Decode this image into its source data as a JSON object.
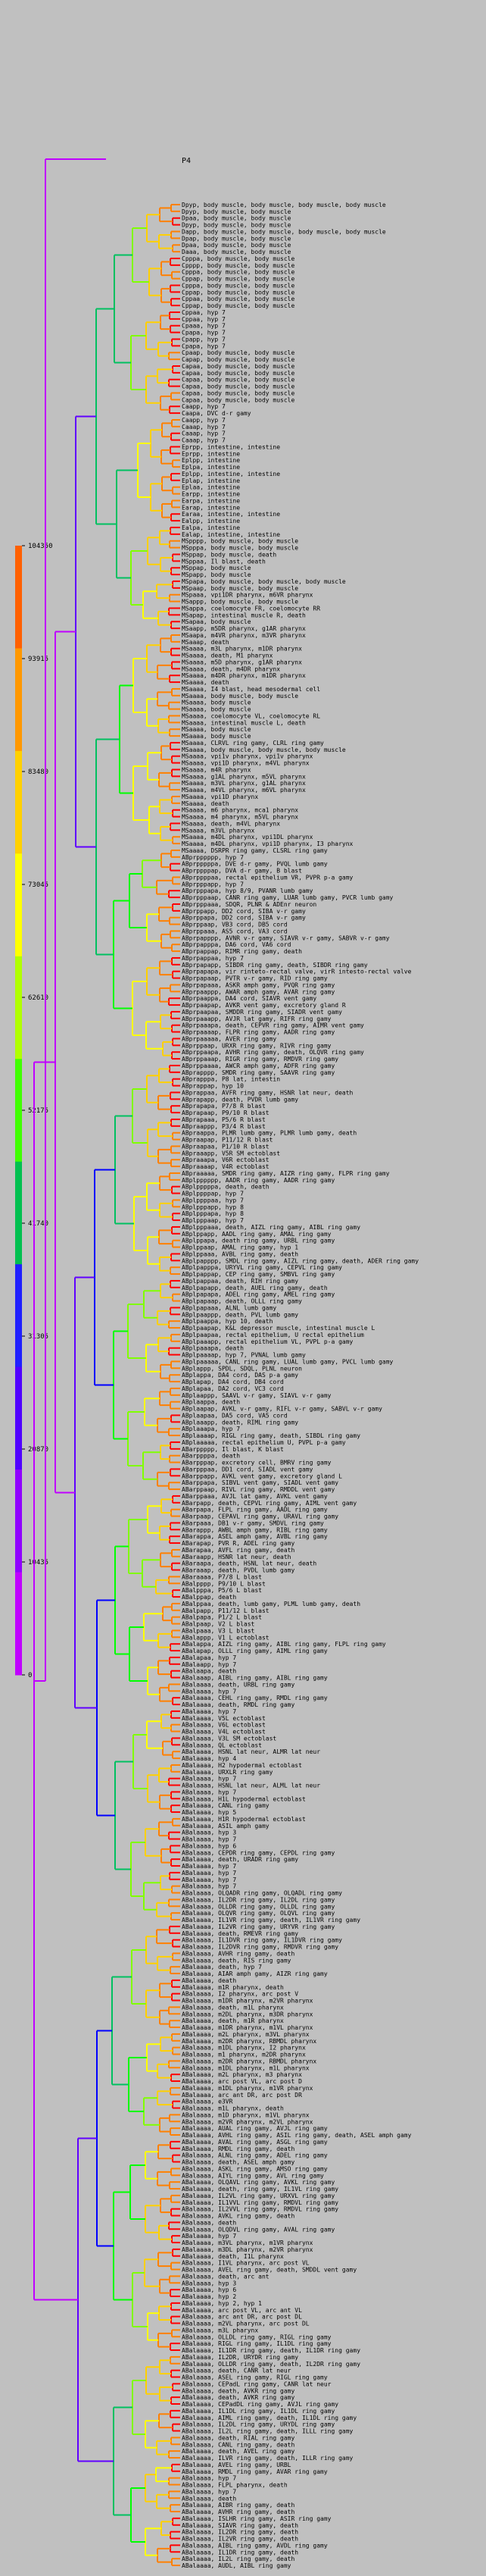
{
  "root_label": "P4",
  "color_scale": {
    "ticks": [
      "104350",
      "93915",
      "83480",
      "73045",
      "62610",
      "52175",
      "41740",
      "31305",
      "20870",
      "10435",
      "0"
    ],
    "colors": [
      "#ff6000",
      "#ff9800",
      "#ffd000",
      "#ffff00",
      "#b0ff00",
      "#40ff00",
      "#00c050",
      "#2020ff",
      "#5000ff",
      "#9000ff",
      "#c000ff"
    ]
  },
  "branch_colors": [
    "#ff0000",
    "#ff8000",
    "#ffd000",
    "#ffff00",
    "#80ff00",
    "#00ff00",
    "#00c060",
    "#0000ff",
    "#6000ff",
    "#a000ff",
    "#c000ff"
  ],
  "leaves": [
    "Dpyp, body muscle, body muscle, body muscle, body muscle",
    "Dpyp, body muscle, body muscle",
    "Dpaa, body muscle, body muscle",
    "Dpyp, body muscle, body muscle",
    "Dapp, body muscle, body muscle, body muscle, body muscle",
    "Dpap, body muscle, body muscle",
    "Dpaa, body muscle, body muscle",
    "Daaa, body muscle, body muscle",
    "Cpppa, body muscle, body muscle",
    "Cpppp, body muscle, body muscle",
    "Cpppa, body muscle, body muscle",
    "Cppap, body muscle, body muscle",
    "Cpppa, body muscle, body muscle",
    "Cppap, body muscle, body muscle",
    "Cppaa, body muscle, body muscle",
    "Cppap, body muscle, body muscle",
    "Cppaa, hyp 7",
    "Cppaa, hyp 7",
    "Cpaaa, hyp 7",
    "Cpapa, hyp 7",
    "Cpapp, hyp 7",
    "Cpapa, hyp 7",
    "Cpaap, body muscle, body muscle",
    "Capap, body muscle, body muscle",
    "Capaa, body muscle, body muscle",
    "Capaa, body muscle, body muscle",
    "Capaa, body muscle, body muscle",
    "Capaa, body muscle, body muscle",
    "Capaa, body muscle, body muscle",
    "Capaa, body muscle, body muscle",
    "Caapp, hyp 7",
    "Caapa, DVC d-r gamy",
    "Caapp, hyp 7",
    "Caaap, hyp 7",
    "Caaap, hyp 7",
    "Caaap, hyp 7",
    "Eprpp, intestine, intestine",
    "Eprpp, intestine",
    "Eplpp, intestine",
    "Eplpa, intestine",
    "Eplpp, intestine, intestine",
    "Eplap, intestine",
    "Eplaa, intestine",
    "Earpp, intestine",
    "Earpa, intestine",
    "Earap, intestine",
    "Earaa, intestine, intestine",
    "Ealpp, intestine",
    "Ealpa, intestine",
    "Ealap, intestine, intestine",
    "MSpppp, body muscle, body muscle",
    "MSpppa, body muscle, body muscle",
    "MSppap, body muscle, death",
    "MSppaa, Il blast, death",
    "MSppap, body muscle",
    "MSpapp, body muscle",
    "MSpapa, body muscle, body muscle, body muscle",
    "MSpaap, body muscle, body muscle",
    "MSpaaa, vpi1DR pharynx, m6VR pharynx",
    "MSappp, body muscle, body muscle",
    "MSappa, coelomocyte FR, coelomocyte RR",
    "MSapap, intestinal muscle R, death",
    "MSapaa, body muscle",
    "MSaapp, m5DR pharynx, g1AR pharynx",
    "MSaapa, m4VR pharynx, m3VR pharynx",
    "MSaaap, death",
    "MSaaaa, m3L pharynx, m1DR pharynx",
    "MSaaaa, death, M1 pharynx",
    "MSaaaa, m5D pharynx, g1AR pharynx",
    "MSaaaa, death, m4DR pharynx",
    "MSaaaa, m4DR pharynx, m1DR pharynx",
    "MSaaaa, death",
    "MSaaaa, I4 blast, head mesodermal cell",
    "MSaaaa, body muscle, body muscle",
    "MSaaaa, body muscle",
    "MSaaaa, body muscle",
    "MSaaaa, coelomocyte VL, coelomocyte RL",
    "MSaaaa, intestinal muscle L, death",
    "MSaaaa, body muscle",
    "MSaaaa, body muscle",
    "MSaaaa, CLRVL ring gamy, CLRL ring gamy",
    "MSaaaa, body muscle, body muscle, body muscle",
    "MSaaaa, vpi1v pharynx, vpi1v pharynx",
    "MSaaaa, vpi1D pharynx, m4VL pharynx",
    "MSaaaa, m4R pharynx",
    "MSaaaa, g1AL pharynx, m5VL pharynx",
    "MSaaaa, m3VL pharynx, g1AL pharynx",
    "MSaaaa, m4VL pharynx, m6VL pharynx",
    "MSaaaa, vpi1D pharynx",
    "MSaaaa, death",
    "MSaaaa, m6 pharynx, mca1 pharynx",
    "MSaaaa, m4 pharynx, m5VL pharynx",
    "MSaaaa, death, m4VL pharynx",
    "MSaaaa, m3VL pharynx",
    "MSaaaa, m4DL pharynx, vpi1DL pharynx",
    "MSaaaa, m4DL pharynx, vpi1D pharynx, I3 pharynx",
    "MSaaaa, DSRPR ring gamy, CLSRL ring gamy",
    "ABprpppppp, hyp 7",
    "ABprpppppa, DVE d-r gamy, PVQL lumb gamy",
    "ABprppppap, DVA d-r gamy, B blast",
    "ABprppppaa, rectal epithelium VR, PVPR p-a gamy",
    "ABprpppapp, hyp 7",
    "ABprpppapa, hyp 8/9, PVANR lumb gamy",
    "ABprpppaap, CANR ring gamy, LUAR lumb gamy, PVCR lumb gamy",
    "ABprpppaaa, SDQR, PLNR & ADEnr neuron",
    "ABprppapp, DD2 cord, SIBA v-r gamy",
    "ABprppapa, DD2 cord, SIBA v-r gamy",
    "ABprppaap, VB3 cord, DB5 cord",
    "ABprppaaa, AS5 cord, VA3 cord",
    "ABprpapppp, AVNR v-r gamy, SIAVR v-r gamy, SABVR v-r gamy",
    "ABprpapppa, DA6 cord, VA6 cord",
    "ABprpappap, RIMR ring gamy, death",
    "ABprpappaa, hyp 7",
    "ABprpapapp, SIBDR ring gamy, death, SIBDR ring gamy",
    "ABprpapapa, vir rinteto-rectal valve, virR intesto-rectal valve",
    "ABprpapaap, PVTR v-r gamy, RID ring gamy",
    "ABprpapaaa, ASKR amph gamy, PVQR ring gamy",
    "ABprpaappp, AWAR amph gamy, AVAR ring gamy",
    "ABprpaappa, DA4 cord, SIAVR vent gamy",
    "ABprpaapap, AVKR vent gamy, excretory gland R",
    "ABprpaapaa, SMDDR ring gamy, SIADR vent gamy",
    "ABprpaaapp, AVJR lat gamy, RIFR ring gamy",
    "ABprpaaapa, death, CEPVR ring gamy, AIMR vent gamy",
    "ABprpaaaap, FLPR ring gamy, AADR ring gamy",
    "ABprpaaaaa, AVER ring gamy",
    "ABprppaap, URXR ring gamy, RIVR ring gamy",
    "ABprppaapa, AVHR ring gamy, death, OLQVR ring gamy",
    "ABprppaaap, RIGR ring gamy, RMDVR ring gamy",
    "ABprppaaaa, AWCR amph gamy, ADFR ring gamy",
    "ABprapppp, SMDR ring gamy, SAAVR ring gamy",
    "ABprapppa, P8 lat, intestin",
    "ABprappap, hyp 10",
    "ABprappaa, AVFR ring gamy, HSNR lat neur, death",
    "ABprapapp, death, PVDR lumb gamy",
    "ABprapapa, P7/8 R blast",
    "ABprapaap, P9/10 R blast",
    "ABprapaaa, P5/6 R blast",
    "ABpraappp, P3/4 R blast",
    "ABpraappa, PLMR lumb gamy, PLMR lumb gamy, death",
    "ABpraapap, P11/12 R blast",
    "ABpraapaa, P1/10 R blast",
    "ABpraaapp, V5R SM ectoblast",
    "ABpraaapa, V6R ectoblast",
    "ABpraaaap, V4R ectoblast",
    "ABpraaaaa, SMDR ring gamy, AIZR ring gamy, FLPR ring gamy",
    "ABplpppppp, AADR ring gamy, AADR ring gamy",
    "ABplpppppa, death, death",
    "ABplppppap, hyp 7",
    "ABplppppaa, hyp 7",
    "ABplpppapp, hyp 8",
    "ABplpppapa, hyp 8",
    "ABplpppaap, hyp 7",
    "ABplpppaaa, death, AIZL ring gamy, AIBL ring gamy",
    "ABplppapp, AADL ring gamy, AMAL ring gamy",
    "ABplppapa, death ring gamy, URBL ring gamy",
    "ABplppaap, AMAL ring gamy, hyp 1",
    "ABplppaaa, AVBL ring gamy, death",
    "ABplpapppp, SMDL ring gamy, AIZL ring gamy, death, ADER ring gamy",
    "ABplpapppa, URYVL ring gamy, CEPVL ring gamy",
    "ABplpappap, CEP ring gamy, SMBVL ring gamy",
    "ABplpappaa, death, RIH ring gamy",
    "ABplpapapp, death, AUEL ring gamy, death",
    "ABplpapapa, ADEL ring gamy, AMEL ring gamy",
    "ABplpapaap, death, OLLL ring gamy",
    "ABplpapaaa, ALNL lumb gamy",
    "ABplpaappp, death, PVL lumb gamy",
    "ABplpaappa, hyp 10, death",
    "ABplpaapap, K&L depressor muscle, intestinal muscle L",
    "ABplpaapaa, rectal epithelium, U rectal epithelium",
    "ABplpaaapp, rectal epithelium VL, PVPL p-a gamy",
    "ABplpaaapa, death",
    "ABplpaaaap, hyp 7, PVNAL lumb gamy",
    "ABplpaaaaa, CANL ring gamy, LUAL lumb gamy, PVCL lumb gamy",
    "ABplappp, SPDL, SDQL, PLNL neuron",
    "ABplappa, DA4 cord, DAS p-a gamy",
    "ABplapap, DA4 cord, DB4 cord",
    "ABplapaa, DA2 cord, VC3 cord",
    "ABplaappp, SAAVL v-r gamy, SIAVL v-r gamy",
    "ABplaappa, death",
    "ABplaapap, AVKL v-r gamy, RIFL v-r gamy, SABVL v-r gamy",
    "ABplaapaa, DA5 cord, VA5 cord",
    "ABplaaapp, death, RIML ring gamy",
    "ABplaaapa, hyp 7",
    "ABplaaaap, RIGL ring gamy, death, SIBDL ring gamy",
    "ABplaaaaa, rectal epithelium U, PVPL p-a gamy",
    "ABarppppp, Il blast, K blast",
    "ABarppppa, death",
    "ABarpppap, excretory cell, BMRV ring gamy",
    "ABarpppaa, DD1 cord, SIADL vent gamy",
    "ABarppapp, AVKL vent gamy, excretory gland L",
    "ABarppapa, SIBVL vent gamy, SIADL vent gamy",
    "ABarppaap, RIVL ring gamy, RMDDL vent gamy",
    "ABarppaaa, AVJL lat gamy, AVKL vent gamy",
    "ABarpapp, death, CEPVL ring gamy, AIML vent gamy",
    "ABarpapa, FLPL ring gamy, AADL ring gamy",
    "ABarpaap, CEPAVL ring gamy, URAVL ring gamy",
    "ABarpaaa, DB1 v-r gamy, SMDVL ring gamy",
    "ABarappp, AWBL amph gamy, RIBL ring gamy",
    "ABarappa, ASEL amph gamy, AVBL ring gamy",
    "ABarapap, PVR R, ADEL ring gamy",
    "ABarapaa, AVFL ring gamy, death",
    "ABaraapp, HSNR lat neur, death",
    "ABaraapa, death, HSNL lat neur, death",
    "ABaraaap, death, PVDL lumb gamy",
    "ABaraaaa, P7/8 L blast",
    "ABalpppp, P9/10 L blast",
    "ABalpppa, P5/6 L blast",
    "ABalppap, death",
    "ABalppaa, death, lumb gamy, PLML lumb gamy, death",
    "ABalpapp, P11/12 L blast",
    "ABalpapa, P1/2 L blast",
    "ABalpaap, V2 L blast",
    "ABalpaaa, V3 L blast",
    "ABalappp, V1 L ectoblast",
    "ABalappa, AIZL ring gamy, AIBL ring gamy, FLPL ring gamy",
    "ABalapap, OLLL ring gamy, AIML ring gamy",
    "ABalapaa, hyp 7",
    "ABalaapp, hyp 7",
    "ABalaapa, death",
    "ABalaaap, AIBL ring gamy, AIBL ring gamy",
    "ABalaaaa, death, URBL ring gamy",
    "ABalaaaa, hyp 7",
    "ABalaaaa, CEHL ring gamy, RMDL ring gamy",
    "ABalaaaa, death, RMDL ring gamy",
    "ABalaaaa, hyp 7",
    "ABalaaaa, V5L ectoblast",
    "ABalaaaa, V6L ectoblast",
    "ABalaaaa, V4L ectoblast",
    "ABalaaaa, V3L SM ectoblast",
    "ABalaaaa, QL ectoblast",
    "ABalaaaa, HSNL lat neur, ALMR lat neur",
    "ABalaaaa, hyp 4",
    "ABalaaaa, H2 hypodermal ectoblast",
    "ABalaaaa, URXLR ring gamy",
    "ABalaaaa, hyp 7",
    "ABalaaaa, HSNL lat neur, ALML lat neur",
    "ABalaaaa, hyp 7",
    "ABalaaaa, H1L hypodermal ectoblast",
    "ABalaaaa, CANL ring gamy",
    "ABalaaaa, hyp 5",
    "ABalaaaa, H1R hypodermal ectoblast",
    "ABalaaaa, ASIL amph gamy",
    "ABalaaaa, hyp 3",
    "ABalaaaa, hyp 7",
    "ABalaaaa, hyp 6",
    "ABalaaaa, CEPDR ring gamy, CEPDL ring gamy",
    "ABalaaaa, death, URADR ring gamy",
    "ABalaaaa, hyp 7",
    "ABalaaaa, hyp 7",
    "ABalaaaa, hyp 7",
    "ABalaaaa, hyp 7",
    "ABalaaaa, OLQADR ring gamy, OLQADL ring gamy",
    "ABalaaaa, IL2DR ring gamy, IL2DL ring gamy",
    "ABalaaaa, OLLDR ring gamy, OLLDL ring gamy",
    "ABalaaaa, OLQVR ring gamy, OLQVL ring gamy",
    "ABalaaaa, IL1VR ring gamy, death, IL1VR ring gamy",
    "ABalaaaa, IL2VR ring gamy, URYVR ring gamy",
    "ABalaaaa, death, RMEVR ring gamy",
    "ABalaaaa, IL1DVR ring gamy, IL1DVR ring gamy",
    "ABalaaaa, IL2DVR ring gamy, RMDVR ring gamy",
    "ABalaaaa, AVHR ring gamy, death",
    "ABalaaaa, death, RIS ring gamy",
    "ABalaaaa, death, hyp 7",
    "ABalaaaa, AIAR amph gamy, AIZR ring gamy",
    "ABalaaaa, death",
    "ABalaaaa, m1R pharynx, death",
    "ABalaaaa, I2 pharynx, arc post V",
    "ABalaaaa, m1DR pharynx, m2VR pharynx",
    "ABalaaaa, death, m1L pharynx",
    "ABalaaaa, m2DL pharynx, m3DR pharynx",
    "ABalaaaa, death, m1R pharynx",
    "ABalaaaa, m1DR pharynx, m1VL pharynx",
    "ABalaaaa, m2L pharynx, m3VL pharynx",
    "ABalaaaa, m2DR pharynx, RBMDL pharynx",
    "ABalaaaa, m1DL pharynx, I2 pharynx",
    "ABalaaaa, m1 pharynx, m2DR pharynx",
    "ABalaaaa, m2DR pharynx, RBMDL pharynx",
    "ABalaaaa, m1DL pharynx, m1L pharynx",
    "ABalaaaa, m2L pharynx, m3 pharynx",
    "ABalaaaa, arc post VL, arc post D",
    "ABalaaaa, m1DL pharynx, m1VR pharynx",
    "ABalaaaa, arc ant DR, arc post DR",
    "ABalaaaa, e3VR",
    "ABalaaaa, m1L pharynx, death",
    "ABalaaaa, m1D pharynx, m1VL pharynx",
    "ABalaaaa, m2VR pharynx, m2VL pharynx",
    "ABalaaaa, AUAL ring gamy, AVJL ring gamy",
    "ABalaaaa, AVHL ring gamy, ASIL ring gamy, death, ASEL amph gamy",
    "ABalaaaa, AVAL ring gamy, ASGL ring gamy",
    "ABalaaaa, RMDL ring gamy, death",
    "ABalaaaa, ALNL ring gamy, ADEL ring gamy",
    "ABalaaaa, death, ASEL amph gamy",
    "ABalaaaa, ASKL ring gamy, AMSO ring gamy",
    "ABalaaaa, AIYL ring gamy, AVL ring gamy",
    "ABalaaaa, OLQAVL ring gamy, AVKL ring gamy",
    "ABalaaaa, death, ring gamy, IL1VL ring gamy",
    "ABalaaaa, IL2VL ring gamy, URXVL ring gamy",
    "ABalaaaa, IL1VVL ring gamy, RMDVL ring gamy",
    "ABalaaaa, IL2VVL ring gamy, RMDVL ring gamy",
    "ABalaaaa, AVKL ring gamy, death",
    "ABalaaaa, death",
    "ABalaaaa, OLQDVL ring gamy, AVAL ring gamy",
    "ABalaaaa, hyp 7",
    "ABalaaaa, m3VL pharynx, m1VR pharynx",
    "ABalaaaa, m3DL pharynx, m2VR pharynx",
    "ABalaaaa, death, I1L pharynx",
    "ABalaaaa, I1VL pharynx, arc post VL",
    "ABalaaaa, AVEL ring gamy, death, SMDDL vent gamy",
    "ABalaaaa, death, arc ant",
    "ABalaaaa, hyp 3",
    "ABalaaaa, hyp 6",
    "ABalaaaa, hyp 2",
    "ABalaaaa, hyp 2, hyp 1",
    "ABalaaaa, arc post VL, arc ant VL",
    "ABalaaaa, arc ant DR, arc post DL",
    "ABalaaaa, m2VL pharynx, arc post DL",
    "ABalaaaa, m3L pharynx",
    "ABalaaaa, OLLDL ring gamy, RIGL ring gamy",
    "ABalaaaa, RIGL ring gamy, IL1DL ring gamy",
    "ABalaaaa, IL1DR ring gamy, death, IL1DR ring gamy",
    "ABalaaaa, IL2DR, URYDR ring gamy",
    "ABalaaaa, OLLDR ring gamy, death, IL2DR ring gamy",
    "ABalaaaa, death, CANR lat neur",
    "ABalaaaa, ASEL ring gamy, RIGL ring gamy",
    "ABalaaaa, CEPadL ring gamy, CANR lat neur",
    "ABalaaaa, death, AVKR ring gamy",
    "ABalaaaa, death, AVKR ring gamy",
    "ABalaaaa, CEPadDL ring gamy, AVJL ring gamy",
    "ABalaaaa, IL1DL ring gamy, IL1DL ring gamy",
    "ABalaaaa, AIML ring gamy, death, IL1DL ring gamy",
    "ABalaaaa, IL2DL ring gamy, URYDL ring gamy",
    "ABalaaaa, IL2L ring gamy, death, ILLL ring gamy",
    "ABalaaaa, death, RIAL ring gamy",
    "ABalaaaa, CANL ring gamy, death",
    "ABalaaaa, death, AVEL ring gamy",
    "ABalaaaa, ILVR ring gamy, death, ILLR ring gamy",
    "ABalaaaa, AVEL ring gamy, URBL",
    "ABalaaaa, RMDL ring gamy, AVAR ring gamy",
    "ABalaaaa, hyp 7",
    "ABalaaaa, FLPL pharynx, death",
    "ABalaaaa, hyp 7",
    "ABalaaaa, death",
    "ABalaaaa, AIBR ring gamy, death",
    "ABalaaaa, AVHR ring gamy, death",
    "ABalaaaa, ISLHR ring gamy, ASIR ring gamy",
    "ABalaaaa, SIAVR ring gamy, death",
    "ABalaaaa, IL2DR ring gamy, death",
    "ABalaaaa, IL2VR ring gamy, death",
    "ABalaaaa, AIBL ring gamy, AVDL ring gamy",
    "ABalaaaa, IL1DR ring gamy, death",
    "ABalaaaa, IL2L ring gamy, death",
    "ABalaaaa, AUDL, AIBL ring gamy"
  ]
}
